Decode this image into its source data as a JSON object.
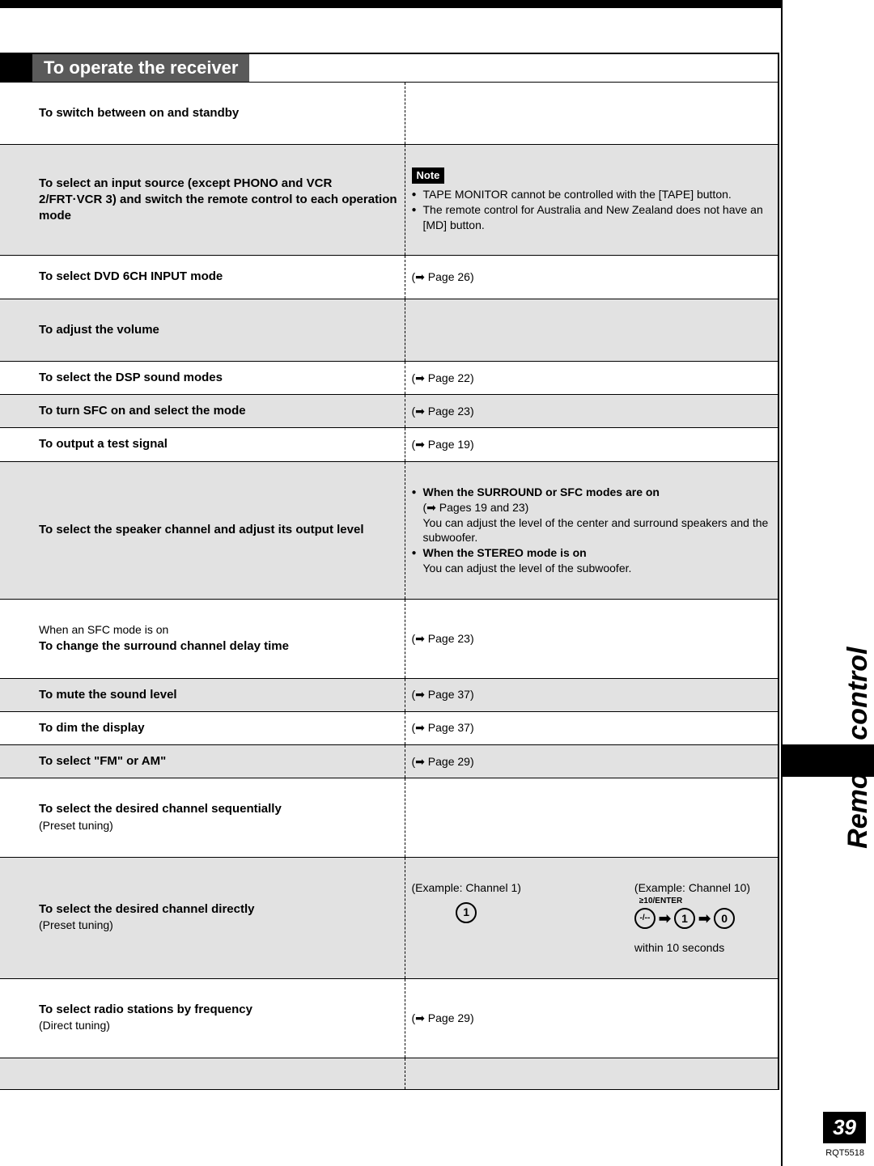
{
  "side_title": "Remote control",
  "page_number": "39",
  "doc_id": "RQT5518",
  "header_title": "To operate the receiver",
  "rows": [
    {
      "op": "To switch between on and standby",
      "desc_type": "empty",
      "shaded": false,
      "height": "tall"
    },
    {
      "op": "To select an input source (except PHONO and VCR 2/FRT·VCR 3) and switch the remote control to each operation mode",
      "desc_type": "note",
      "note_label": "Note",
      "note_items": [
        "TAPE MONITOR cannot be controlled with the [TAPE] button.",
        "The remote control for Australia and New Zealand does not have an [MD] button."
      ],
      "shaded": true,
      "height": "tall"
    },
    {
      "op": "To select DVD 6CH INPUT mode",
      "desc_type": "pageref",
      "page": "26",
      "shaded": false,
      "height": "med"
    },
    {
      "op": "To adjust the volume",
      "desc_type": "empty",
      "shaded": true,
      "height": "tall"
    },
    {
      "op": "To select the DSP sound modes",
      "desc_type": "pageref",
      "page": "22",
      "shaded": false,
      "height": ""
    },
    {
      "op": "To turn SFC on and select the mode",
      "desc_type": "pageref",
      "page": "23",
      "shaded": true,
      "height": ""
    },
    {
      "op": "To output a test signal",
      "desc_type": "pageref",
      "page": "19",
      "shaded": false,
      "height": ""
    },
    {
      "op": "To select the speaker channel and adjust its output level",
      "desc_type": "speaker",
      "speaker_line1_bold": "When the SURROUND or SFC modes are on",
      "speaker_line1_ref": "(➡ Pages 19 and 23)",
      "speaker_line1_txt": "You can adjust the level of the center and surround speakers and the subwoofer.",
      "speaker_line2_bold": "When the STEREO mode is on",
      "speaker_line2_txt": "You can adjust the level of the subwoofer.",
      "shaded": true,
      "height": "tall"
    },
    {
      "op_pre": "When an SFC mode is on",
      "op": "To change the surround channel delay time",
      "desc_type": "pageref",
      "page": "23",
      "shaded": false,
      "height": "tall"
    },
    {
      "op": "To mute the sound level",
      "desc_type": "pageref",
      "page": "37",
      "shaded": true,
      "height": ""
    },
    {
      "op": "To dim the display",
      "desc_type": "pageref",
      "page": "37",
      "shaded": false,
      "height": ""
    },
    {
      "op": "To select \"FM\" or AM\"",
      "desc_type": "pageref",
      "page": "29",
      "shaded": true,
      "height": ""
    },
    {
      "op": "To select the desired channel sequentially",
      "op_sub": "(Preset tuning)",
      "desc_type": "empty",
      "shaded": false,
      "height": "tall"
    },
    {
      "op": "To select the desired channel directly",
      "op_sub": "(Preset tuning)",
      "desc_type": "channels",
      "ex1_label": "(Example: Channel 1)",
      "ex2_label": "(Example: Channel 10)",
      "enter_label": "≥10/ENTER",
      "within_label": "within 10 seconds",
      "btn1": "1",
      "btn_slash": "-/--",
      "btn10a": "1",
      "btn10b": "0",
      "shaded": true,
      "height": "tall"
    },
    {
      "op": "To select radio stations by frequency",
      "op_sub": "(Direct tuning)",
      "desc_type": "pageref",
      "page": "29",
      "shaded": false,
      "height": "tall"
    },
    {
      "op": "",
      "desc_type": "empty",
      "shaded": true,
      "height": ""
    }
  ],
  "page_prefix": "(➡ Page ",
  "page_suffix": ")"
}
